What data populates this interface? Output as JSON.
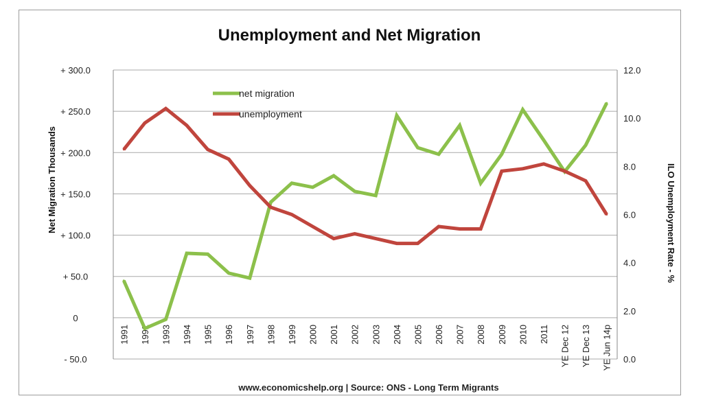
{
  "chart_data": {
    "type": "line",
    "title": "Unemployment and Net Migration",
    "source": "www.economicshelp.org | Source: ONS - Long Term Migrants",
    "categories": [
      "1991",
      "1992",
      "1993",
      "1994",
      "1995",
      "1996",
      "1997",
      "1998",
      "1999",
      "2000",
      "2001",
      "2002",
      "2003",
      "2004",
      "2005",
      "2006",
      "2007",
      "2008",
      "2009",
      "2010",
      "2011",
      "YE Dec 12",
      "YE Dec 13",
      "YE Jun 14p"
    ],
    "ylabel": "Net Migration Thousands",
    "y2label": "ILO Unemployment Rate - %",
    "ylim": [
      -50,
      300
    ],
    "y2lim": [
      0,
      12
    ],
    "yticks": [
      "- 50.0",
      "0",
      "+ 50.0",
      "+ 100.0",
      "+ 150.0",
      "+ 200.0",
      "+ 250.0",
      "+ 300.0"
    ],
    "y2ticks": [
      "0.0",
      "2.0",
      "4.0",
      "6.0",
      "8.0",
      "10.0",
      "12.0"
    ],
    "grid": true,
    "legend_position": "top-left",
    "series": [
      {
        "name": "net migration",
        "axis": "left",
        "color": "#8cc04b",
        "values": [
          45,
          -13,
          -2,
          78,
          77,
          54,
          48,
          140,
          163,
          158,
          172,
          153,
          148,
          245,
          206,
          198,
          233,
          163,
          198,
          252,
          215,
          177,
          209,
          260
        ]
      },
      {
        "name": "unemployment",
        "axis": "right",
        "color": "#c0453d",
        "values": [
          8.7,
          9.8,
          10.4,
          9.7,
          8.7,
          8.3,
          7.2,
          6.3,
          6.0,
          5.5,
          5.0,
          5.2,
          5.0,
          4.8,
          4.8,
          5.5,
          5.4,
          5.4,
          7.8,
          7.9,
          8.1,
          7.8,
          7.4,
          6.0
        ]
      }
    ]
  }
}
